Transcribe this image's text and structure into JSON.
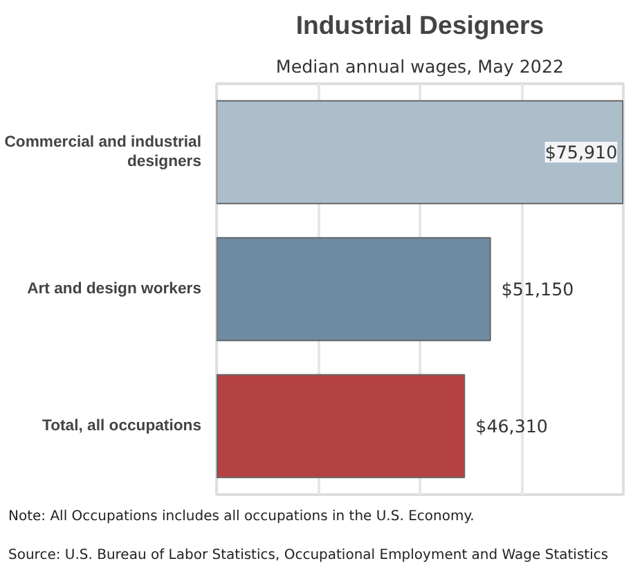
{
  "chart_data": {
    "type": "bar",
    "orientation": "horizontal",
    "title": "Industrial Designers",
    "subtitle": "Median annual wages, May 2022",
    "categories": [
      "Commercial and industrial designers",
      "Art and design workers",
      "Total, all occupations"
    ],
    "values": [
      75910,
      51150,
      46310
    ],
    "colors": [
      "#adbecb",
      "#6f8ba2",
      "#b54243"
    ],
    "value_labels": [
      "$75,910",
      "$51,150",
      "$46,310"
    ],
    "xlim": [
      0,
      76000
    ],
    "xticks": [
      {
        "value": 0,
        "label": null
      },
      {
        "value": 19000,
        "label": null
      },
      {
        "value": 38000,
        "label": null
      },
      {
        "value": 57000,
        "label": null
      },
      {
        "value": 76000,
        "label": null
      }
    ],
    "grid": "x",
    "annotations": [
      "Note: All Occupations includes all occupations in the U.S. Economy.",
      "Source: U.S. Bureau of Labor Statistics, Occupational Employment and Wage Statistics"
    ]
  }
}
